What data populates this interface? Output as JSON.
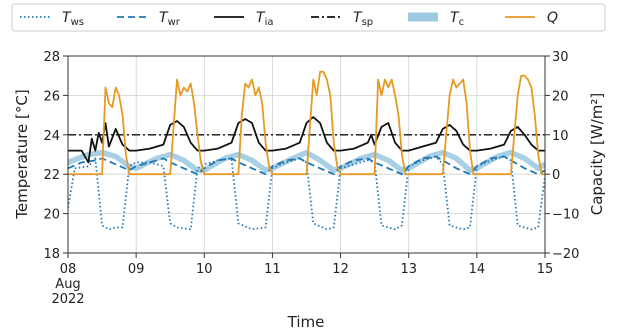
{
  "chart_data": {
    "type": "line",
    "xlabel": "Time",
    "ylabel_left": "Temperature [°C]",
    "ylabel_right": "Capacity [W/m²]",
    "ylim_left": [
      18,
      28
    ],
    "ylim_right": [
      -20,
      30
    ],
    "yticks_left": [
      18,
      20,
      22,
      24,
      26,
      28
    ],
    "yticks_right": [
      -20,
      -10,
      0,
      10,
      20,
      30
    ],
    "xlim_days": [
      8,
      15
    ],
    "xticks": [
      {
        "day": 8,
        "lines": [
          "08",
          "Aug",
          "2022"
        ]
      },
      {
        "day": 9,
        "lines": [
          "09"
        ]
      },
      {
        "day": 10,
        "lines": [
          "10"
        ]
      },
      {
        "day": 11,
        "lines": [
          "11"
        ]
      },
      {
        "day": 12,
        "lines": [
          "12"
        ]
      },
      {
        "day": 13,
        "lines": [
          "13"
        ]
      },
      {
        "day": 14,
        "lines": [
          "14"
        ]
      },
      {
        "day": 15,
        "lines": [
          "15"
        ]
      }
    ],
    "grid": true,
    "legend_position": "top",
    "legend": [
      {
        "key": "ws",
        "base": "T",
        "sub": "ws"
      },
      {
        "key": "wr",
        "base": "T",
        "sub": "wr"
      },
      {
        "key": "ia",
        "base": "T",
        "sub": "ia"
      },
      {
        "key": "sp",
        "base": "T",
        "sub": "sp"
      },
      {
        "key": "c",
        "base": "T",
        "sub": "c"
      },
      {
        "key": "Q",
        "base": "Q",
        "sub": ""
      }
    ],
    "series": [
      {
        "key": "ws",
        "axis": "left",
        "color": "#1f77b4",
        "style": "dotted",
        "x": [
          8.0,
          8.1,
          8.3,
          8.4,
          8.5,
          8.6,
          8.7,
          8.8,
          8.9,
          9.0,
          9.2,
          9.4,
          9.5,
          9.6,
          9.8,
          9.9,
          10.0,
          10.1,
          10.2,
          10.4,
          10.5,
          10.7,
          10.9,
          11.0,
          11.2,
          11.4,
          11.5,
          11.6,
          11.8,
          11.9,
          12.0,
          12.2,
          12.4,
          12.5,
          12.6,
          12.8,
          12.9,
          13.0,
          13.2,
          13.4,
          13.5,
          13.6,
          13.8,
          13.9,
          14.0,
          14.2,
          14.4,
          14.5,
          14.6,
          14.8,
          14.9,
          15.0
        ],
        "y": [
          20.3,
          22.3,
          22.4,
          22.8,
          19.4,
          19.2,
          19.3,
          19.3,
          22.4,
          22.6,
          22.6,
          22.4,
          19.5,
          19.3,
          19.2,
          22.3,
          22.5,
          22.6,
          22.7,
          22.8,
          19.5,
          19.2,
          19.3,
          22.3,
          22.6,
          22.8,
          22.6,
          19.5,
          19.2,
          19.3,
          22.3,
          22.5,
          22.7,
          22.6,
          19.4,
          19.2,
          19.4,
          22.4,
          22.7,
          22.9,
          22.5,
          19.4,
          19.2,
          19.3,
          22.4,
          22.7,
          22.9,
          22.7,
          19.4,
          19.2,
          19.3,
          21.9
        ]
      },
      {
        "key": "wr",
        "axis": "left",
        "color": "#1f77b4",
        "style": "dashed",
        "x": [
          8.0,
          8.2,
          8.4,
          8.5,
          8.7,
          8.9,
          9.0,
          9.2,
          9.4,
          9.5,
          9.7,
          9.9,
          10.0,
          10.2,
          10.4,
          10.5,
          10.7,
          10.9,
          11.0,
          11.2,
          11.4,
          11.5,
          11.7,
          11.9,
          12.0,
          12.2,
          12.4,
          12.5,
          12.7,
          12.9,
          13.0,
          13.2,
          13.4,
          13.5,
          13.7,
          13.9,
          14.0,
          14.2,
          14.4,
          14.5,
          14.7,
          14.9,
          15.0
        ],
        "y": [
          22.3,
          22.6,
          22.7,
          22.8,
          22.5,
          22.2,
          22.4,
          22.6,
          22.8,
          22.6,
          22.3,
          22.0,
          22.3,
          22.7,
          22.8,
          22.6,
          22.3,
          22.0,
          22.4,
          22.7,
          22.8,
          22.6,
          22.3,
          22.0,
          22.4,
          22.7,
          22.8,
          22.6,
          22.3,
          22.0,
          22.4,
          22.8,
          22.9,
          22.7,
          22.3,
          22.0,
          22.4,
          22.8,
          22.9,
          22.7,
          22.3,
          22.0,
          22.2
        ]
      },
      {
        "key": "ia",
        "axis": "left",
        "color": "#111111",
        "style": "solid",
        "x": [
          8.0,
          8.2,
          8.3,
          8.35,
          8.4,
          8.45,
          8.5,
          8.55,
          8.6,
          8.7,
          8.8,
          8.9,
          9.0,
          9.2,
          9.4,
          9.5,
          9.6,
          9.7,
          9.8,
          9.9,
          10.0,
          10.2,
          10.4,
          10.5,
          10.6,
          10.7,
          10.8,
          10.9,
          11.0,
          11.2,
          11.4,
          11.5,
          11.6,
          11.7,
          11.8,
          11.9,
          12.0,
          12.2,
          12.4,
          12.45,
          12.5,
          12.6,
          12.7,
          12.8,
          12.9,
          13.0,
          13.2,
          13.4,
          13.5,
          13.6,
          13.7,
          13.8,
          13.9,
          14.0,
          14.2,
          14.4,
          14.5,
          14.6,
          14.7,
          14.8,
          14.9,
          15.0
        ],
        "y": [
          23.2,
          23.2,
          22.6,
          23.8,
          23.2,
          24.1,
          23.6,
          24.6,
          23.4,
          24.3,
          23.5,
          23.2,
          23.2,
          23.3,
          23.5,
          24.5,
          24.7,
          24.4,
          23.6,
          23.2,
          23.2,
          23.3,
          23.6,
          24.6,
          24.8,
          24.6,
          23.6,
          23.2,
          23.2,
          23.3,
          23.6,
          24.6,
          24.9,
          24.6,
          23.6,
          23.2,
          23.2,
          23.3,
          23.6,
          24.0,
          23.5,
          24.4,
          24.6,
          23.6,
          23.2,
          23.2,
          23.4,
          23.6,
          24.3,
          24.5,
          24.2,
          23.5,
          23.2,
          23.2,
          23.3,
          23.5,
          24.2,
          24.4,
          24.0,
          23.5,
          23.2,
          23.2
        ]
      },
      {
        "key": "sp",
        "axis": "left",
        "color": "#111111",
        "style": "dashdot",
        "x": [
          8.0,
          15.0
        ],
        "y": [
          24.0,
          24.0
        ]
      },
      {
        "key": "c",
        "axis": "left",
        "color": "#9ecae1",
        "style": "band",
        "x": [
          8.0,
          8.3,
          8.5,
          8.7,
          8.9,
          9.0,
          9.3,
          9.5,
          9.7,
          9.9,
          10.0,
          10.3,
          10.5,
          10.7,
          10.9,
          11.0,
          11.3,
          11.5,
          11.7,
          11.9,
          12.0,
          12.3,
          12.5,
          12.7,
          12.9,
          13.0,
          13.3,
          13.5,
          13.7,
          13.9,
          14.0,
          14.3,
          14.5,
          14.7,
          14.9,
          15.0
        ],
        "y": [
          22.6,
          23.0,
          23.1,
          22.9,
          22.4,
          22.3,
          22.8,
          23.0,
          22.7,
          22.2,
          22.2,
          22.8,
          23.0,
          22.7,
          22.2,
          22.3,
          22.8,
          23.1,
          22.7,
          22.2,
          22.3,
          22.8,
          23.0,
          22.7,
          22.2,
          22.3,
          22.9,
          23.1,
          22.8,
          22.2,
          22.3,
          22.9,
          23.1,
          22.8,
          22.3,
          22.5
        ]
      },
      {
        "key": "Q",
        "axis": "right",
        "color": "#e69a24",
        "style": "solid",
        "x": [
          8.0,
          8.5,
          8.55,
          8.6,
          8.65,
          8.7,
          8.75,
          8.8,
          8.85,
          8.9,
          9.0,
          9.5,
          9.6,
          9.65,
          9.7,
          9.75,
          9.8,
          9.85,
          9.9,
          9.95,
          10.0,
          10.5,
          10.55,
          10.6,
          10.65,
          10.7,
          10.75,
          10.8,
          10.85,
          10.9,
          10.95,
          11.0,
          11.5,
          11.6,
          11.65,
          11.7,
          11.75,
          11.8,
          11.85,
          11.9,
          11.95,
          12.0,
          12.5,
          12.55,
          12.6,
          12.65,
          12.7,
          12.75,
          12.8,
          12.85,
          12.9,
          12.95,
          13.0,
          13.5,
          13.6,
          13.65,
          13.7,
          13.75,
          13.8,
          13.85,
          13.9,
          13.95,
          14.0,
          14.5,
          14.6,
          14.65,
          14.7,
          14.75,
          14.8,
          14.85,
          14.9,
          14.95,
          15.0
        ],
        "y": [
          0,
          0,
          22,
          18,
          17,
          22,
          20,
          15,
          5,
          0,
          0,
          0,
          24,
          20,
          22,
          21,
          23,
          18,
          10,
          3,
          0,
          0,
          15,
          23,
          22,
          24,
          20,
          22,
          18,
          8,
          2,
          0,
          0,
          24,
          20,
          26,
          26,
          24,
          20,
          8,
          2,
          0,
          0,
          24,
          20,
          24,
          22,
          24,
          20,
          15,
          5,
          0,
          0,
          0,
          20,
          24,
          22,
          23,
          24,
          18,
          6,
          0,
          0,
          0,
          20,
          25,
          25,
          24,
          22,
          15,
          5,
          0,
          0
        ]
      }
    ]
  }
}
